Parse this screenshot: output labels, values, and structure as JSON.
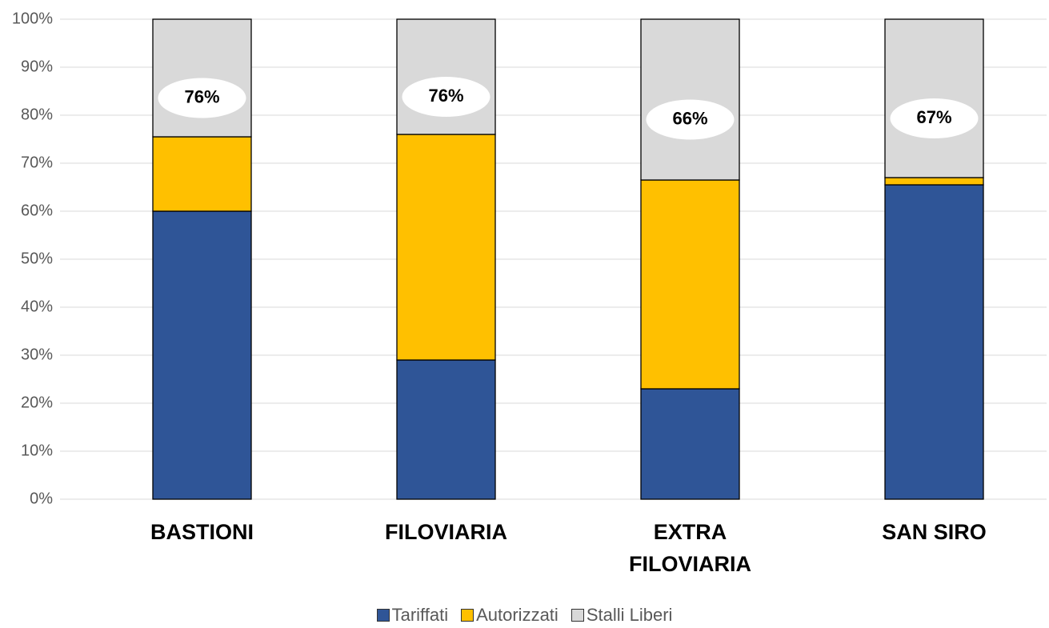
{
  "chart_data": {
    "type": "stacked_bar",
    "categories": [
      "BASTIONI",
      "FILOVIARIA",
      "EXTRA FILOVIARIA",
      "SAN SIRO"
    ],
    "series": [
      {
        "name": "Tariffati",
        "color": "#2f5597",
        "values": [
          60,
          29,
          23,
          65.5
        ]
      },
      {
        "name": "Autorizzati",
        "color": "#ffc000",
        "values": [
          15.5,
          47,
          43.5,
          1.5
        ]
      },
      {
        "name": "Stalli Liberi",
        "color": "#d9d9d9",
        "values": [
          24.5,
          24,
          33.5,
          33
        ]
      }
    ],
    "totals": {
      "values": [
        76,
        76,
        66,
        67
      ],
      "value_labels": [
        "76%",
        "76%",
        "66%",
        "67%"
      ]
    },
    "ylim": [
      0,
      100
    ],
    "yticks": [
      {
        "value": 0,
        "label": "0%"
      },
      {
        "value": 10,
        "label": "10%"
      },
      {
        "value": 20,
        "label": "20%"
      },
      {
        "value": 30,
        "label": "30%"
      },
      {
        "value": 40,
        "label": "40%"
      },
      {
        "value": 50,
        "label": "50%"
      },
      {
        "value": 60,
        "label": "60%"
      },
      {
        "value": 70,
        "label": "70%"
      },
      {
        "value": 80,
        "label": "80%"
      },
      {
        "value": 90,
        "label": "90%"
      },
      {
        "value": 100,
        "label": "100%"
      }
    ],
    "grid": true,
    "legend": "bottom"
  }
}
